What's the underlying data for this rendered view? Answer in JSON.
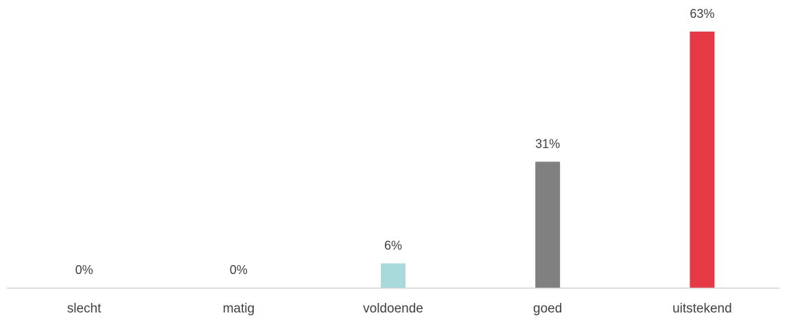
{
  "chart_data": {
    "type": "bar",
    "categories": [
      "slecht",
      "matig",
      "voldoende",
      "goed",
      "uitstekend"
    ],
    "values": [
      0,
      0,
      6,
      31,
      63
    ],
    "data_labels": [
      "0%",
      "0%",
      "6%",
      "31%",
      "63%"
    ],
    "colors": [
      "#a8dadc",
      "#a8dadc",
      "#a8dadc",
      "#808080",
      "#e63946"
    ],
    "unit": "%",
    "ylim": [
      0,
      63
    ],
    "grid": false,
    "legend": "none"
  }
}
